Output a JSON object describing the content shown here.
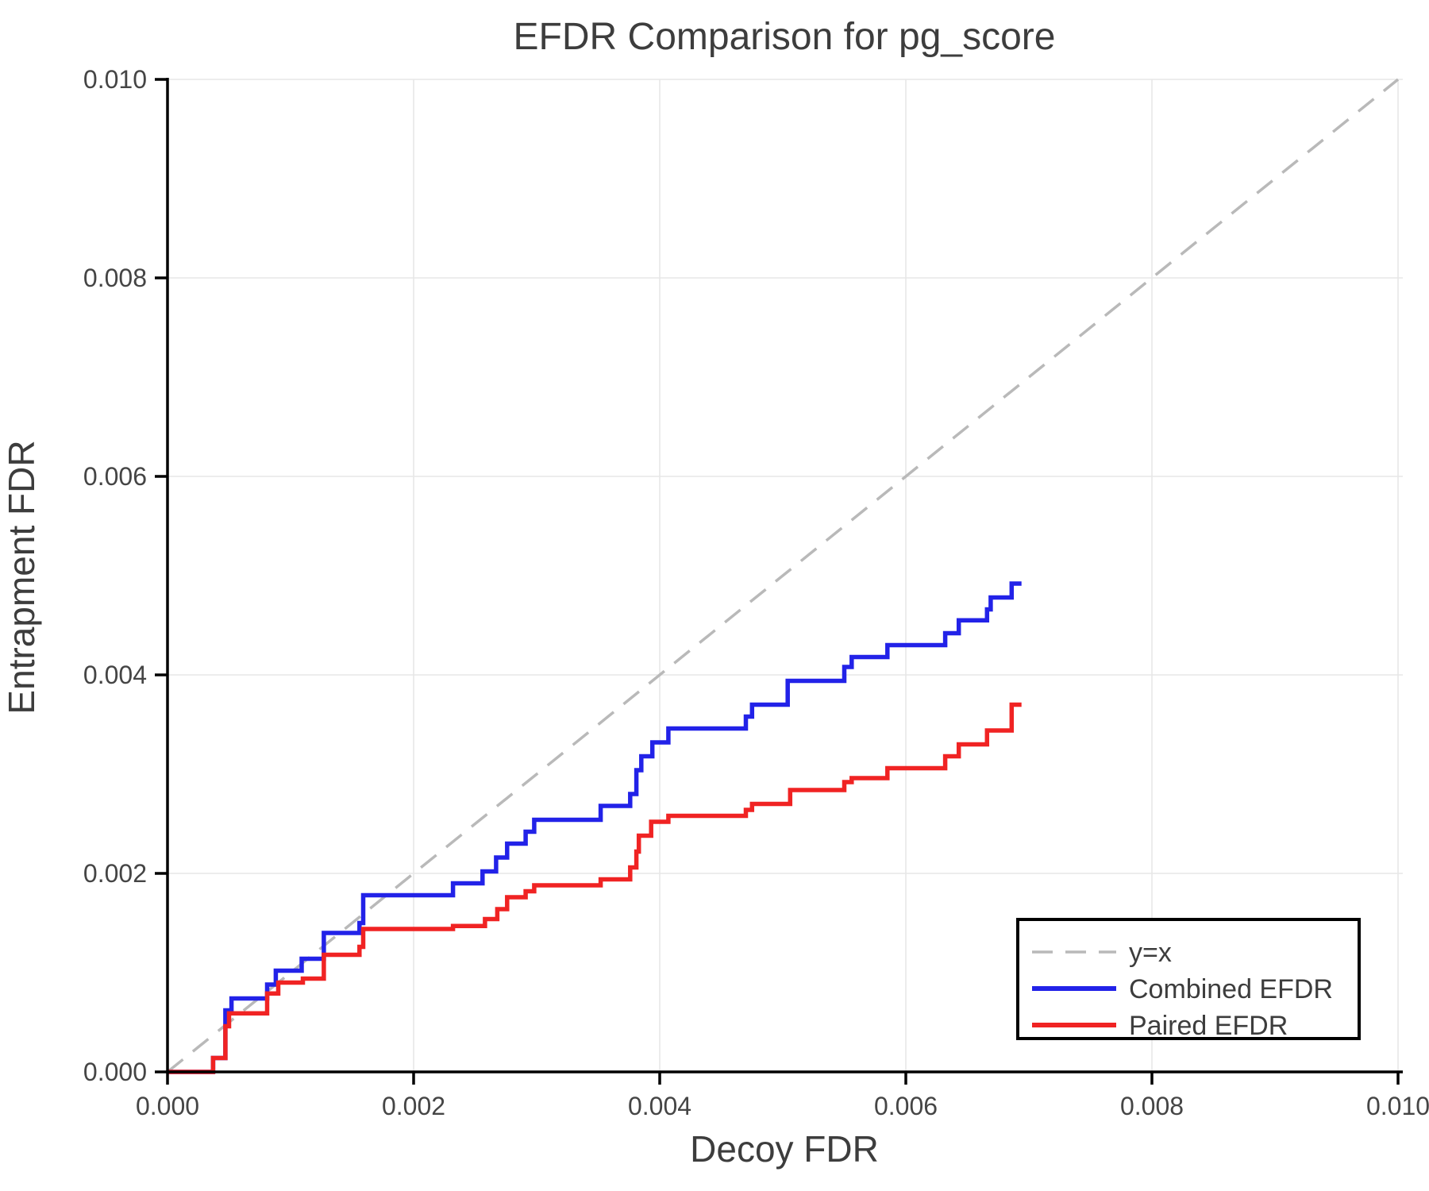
{
  "chart": {
    "title": "EFDR Comparison for pg_score",
    "xlabel": "Decoy FDR",
    "ylabel": "Entrapment FDR"
  },
  "legend": {
    "items": [
      {
        "label": "y=x",
        "color": "#b9b9b9",
        "style": "dashed"
      },
      {
        "label": "Combined EFDR",
        "color": "#2222e8",
        "style": "solid"
      },
      {
        "label": "Paired EFDR",
        "color": "#f02323",
        "style": "solid"
      }
    ]
  },
  "colors": {
    "grid": "#e7e7e7",
    "spine": "#000000",
    "text": "#3d3d3d",
    "identity": "#b9b9b9",
    "combined": "#2222e8",
    "paired": "#f02323",
    "legend_border": "#000000",
    "background": "#ffffff"
  },
  "chart_data": {
    "type": "line",
    "title": "EFDR Comparison for pg_score",
    "xlabel": "Decoy FDR",
    "ylabel": "Entrapment FDR",
    "xlim": [
      0.0,
      0.01
    ],
    "ylim": [
      0.0,
      0.01
    ],
    "x_ticks": [
      0.0,
      0.002,
      0.004,
      0.006,
      0.008,
      0.01
    ],
    "y_ticks": [
      0.0,
      0.002,
      0.004,
      0.006,
      0.008,
      0.01
    ],
    "x_tick_labels": [
      "0.000",
      "0.002",
      "0.004",
      "0.006",
      "0.008",
      "0.010"
    ],
    "y_tick_labels": [
      "0.000",
      "0.002",
      "0.004",
      "0.006",
      "0.008",
      "0.010"
    ],
    "grid": true,
    "legend_position": "lower right",
    "series": [
      {
        "name": "y=x",
        "style": "dashed",
        "step": false,
        "color": "#b9b9b9",
        "points": [
          [
            0.0,
            0.0
          ],
          [
            0.01,
            0.01
          ]
        ]
      },
      {
        "name": "Combined EFDR",
        "style": "solid",
        "step": true,
        "color": "#2222e8",
        "points": [
          [
            0.0,
            0.0
          ],
          [
            0.00037,
            0.00014
          ],
          [
            0.00047,
            0.00062
          ],
          [
            0.00052,
            0.00074
          ],
          [
            0.00081,
            0.00088
          ],
          [
            0.00088,
            0.00102
          ],
          [
            0.00109,
            0.00114
          ],
          [
            0.00127,
            0.0014
          ],
          [
            0.00156,
            0.0015
          ],
          [
            0.00159,
            0.00178
          ],
          [
            0.00232,
            0.0019
          ],
          [
            0.00256,
            0.00202
          ],
          [
            0.00267,
            0.00216
          ],
          [
            0.00276,
            0.0023
          ],
          [
            0.00291,
            0.00242
          ],
          [
            0.00298,
            0.00254
          ],
          [
            0.00352,
            0.00268
          ],
          [
            0.00376,
            0.0028
          ],
          [
            0.00381,
            0.00304
          ],
          [
            0.00385,
            0.00318
          ],
          [
            0.00394,
            0.00332
          ],
          [
            0.00407,
            0.00346
          ],
          [
            0.0047,
            0.00358
          ],
          [
            0.00475,
            0.0037
          ],
          [
            0.00504,
            0.00394
          ],
          [
            0.0055,
            0.00408
          ],
          [
            0.00556,
            0.00418
          ],
          [
            0.00585,
            0.0043
          ],
          [
            0.00632,
            0.00442
          ],
          [
            0.00643,
            0.00455
          ],
          [
            0.00666,
            0.00466
          ],
          [
            0.00669,
            0.00478
          ],
          [
            0.00686,
            0.00492
          ],
          [
            0.00694,
            0.00492
          ]
        ]
      },
      {
        "name": "Paired EFDR",
        "style": "solid",
        "step": true,
        "color": "#f02323",
        "points": [
          [
            0.0,
            0.0
          ],
          [
            0.00037,
            0.00014
          ],
          [
            0.00047,
            0.00046
          ],
          [
            0.0005,
            0.00059
          ],
          [
            0.00081,
            0.00079
          ],
          [
            0.0009,
            0.0009
          ],
          [
            0.0011,
            0.00094
          ],
          [
            0.00127,
            0.00118
          ],
          [
            0.00156,
            0.00126
          ],
          [
            0.00159,
            0.00144
          ],
          [
            0.00232,
            0.00147
          ],
          [
            0.00258,
            0.00154
          ],
          [
            0.00268,
            0.00164
          ],
          [
            0.00276,
            0.00176
          ],
          [
            0.00291,
            0.00182
          ],
          [
            0.00298,
            0.00188
          ],
          [
            0.00352,
            0.00194
          ],
          [
            0.00376,
            0.00206
          ],
          [
            0.00381,
            0.00222
          ],
          [
            0.00383,
            0.00238
          ],
          [
            0.00393,
            0.00252
          ],
          [
            0.00407,
            0.00258
          ],
          [
            0.0047,
            0.00264
          ],
          [
            0.00475,
            0.0027
          ],
          [
            0.00506,
            0.00284
          ],
          [
            0.0055,
            0.00292
          ],
          [
            0.00556,
            0.00296
          ],
          [
            0.00585,
            0.00306
          ],
          [
            0.00632,
            0.00318
          ],
          [
            0.00643,
            0.0033
          ],
          [
            0.00666,
            0.00344
          ],
          [
            0.00686,
            0.0037
          ],
          [
            0.00694,
            0.0037
          ]
        ]
      }
    ]
  }
}
